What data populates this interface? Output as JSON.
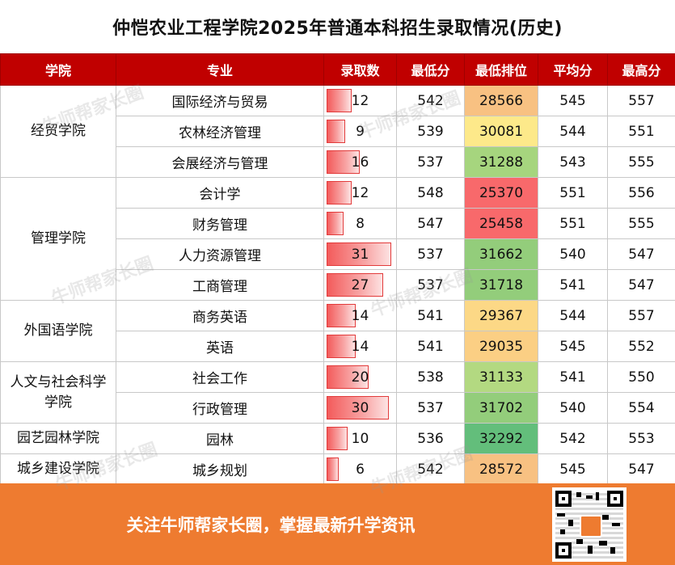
{
  "title": "仲恺农业工程学院2025年普通本科招生录取情况(历史)",
  "headers": [
    "学院",
    "专业",
    "录取数",
    "最低分",
    "最低排位",
    "平均分",
    "最高分"
  ],
  "colors": {
    "header_bg": "#c00000",
    "footer_bg": "#ee7b30",
    "bar": "#f35b5b"
  },
  "rows": [
    {
      "major": "国际经济与贸易",
      "count": "12",
      "min": "542",
      "rank": "28566",
      "avg": "545",
      "max": "557",
      "rank_color": "#f8c182"
    },
    {
      "major": "农林经济管理",
      "count": "9",
      "min": "539",
      "rank": "30081",
      "avg": "544",
      "max": "551",
      "rank_color": "#fde98a"
    },
    {
      "major": "会展经济与管理",
      "count": "16",
      "min": "537",
      "rank": "31288",
      "avg": "543",
      "max": "555",
      "rank_color": "#a6d57e"
    },
    {
      "major": "会计学",
      "count": "12",
      "min": "548",
      "rank": "25370",
      "avg": "551",
      "max": "556",
      "rank_color": "#f8696b"
    },
    {
      "major": "财务管理",
      "count": "8",
      "min": "547",
      "rank": "25458",
      "avg": "551",
      "max": "555",
      "rank_color": "#f8696b"
    },
    {
      "major": "人力资源管理",
      "count": "31",
      "min": "537",
      "rank": "31662",
      "avg": "540",
      "max": "547",
      "rank_color": "#93cd7b"
    },
    {
      "major": "工商管理",
      "count": "27",
      "min": "537",
      "rank": "31718",
      "avg": "541",
      "max": "547",
      "rank_color": "#93cd7b"
    },
    {
      "major": "商务英语",
      "count": "14",
      "min": "541",
      "rank": "29367",
      "avg": "544",
      "max": "557",
      "rank_color": "#fcd886"
    },
    {
      "major": "英语",
      "count": "14",
      "min": "541",
      "rank": "29035",
      "avg": "545",
      "max": "552",
      "rank_color": "#fbcf84"
    },
    {
      "major": "社会工作",
      "count": "20",
      "min": "538",
      "rank": "31133",
      "avg": "541",
      "max": "550",
      "rank_color": "#b3d981"
    },
    {
      "major": "行政管理",
      "count": "30",
      "min": "537",
      "rank": "31702",
      "avg": "540",
      "max": "554",
      "rank_color": "#93cd7b"
    },
    {
      "major": "园林",
      "count": "10",
      "min": "536",
      "rank": "32292",
      "avg": "542",
      "max": "553",
      "rank_color": "#63be7b"
    },
    {
      "major": "城乡规划",
      "count": "6",
      "min": "542",
      "rank": "28572",
      "avg": "545",
      "max": "547",
      "rank_color": "#f8c182"
    }
  ],
  "colleges": [
    {
      "name": "经贸学院",
      "rows": 3
    },
    {
      "name": "管理学院",
      "rows": 4
    },
    {
      "name": "外国语学院",
      "rows": 2
    },
    {
      "name": "人文与社会科学学院",
      "display": "人文与社会科学\n学院",
      "rows": 2
    },
    {
      "name": "园艺园林学院",
      "rows": 1
    },
    {
      "name": "城乡建设学院",
      "rows": 1
    }
  ],
  "count_max": 31,
  "watermark": "牛师帮家长圈",
  "footer_text": "关注牛师帮家长圈，掌握最新升学资讯"
}
